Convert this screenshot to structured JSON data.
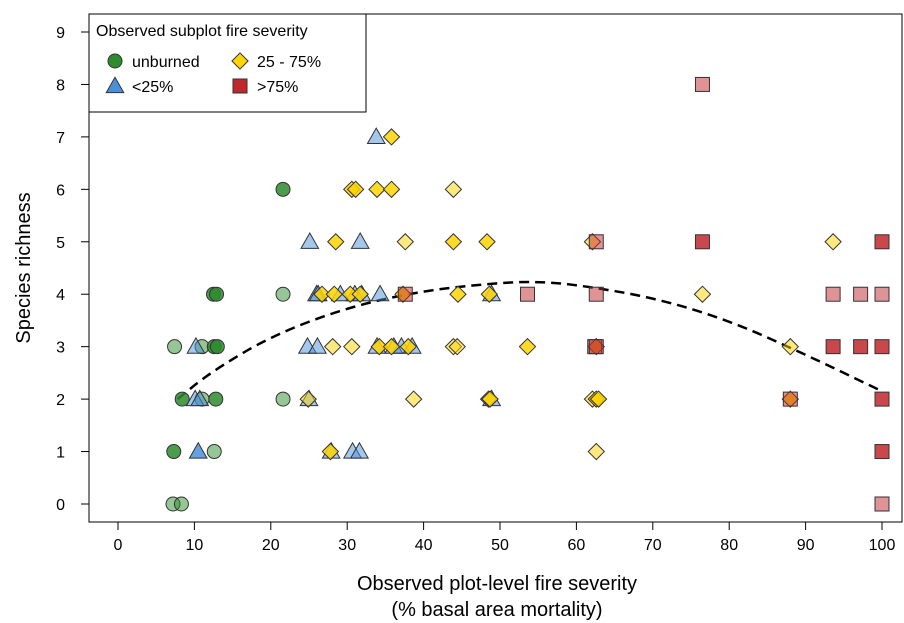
{
  "chart_data": {
    "type": "scatter",
    "title": "",
    "xlabel_line1": "Observed plot-level fire severity",
    "xlabel_line2": "(% basal area mortality)",
    "ylabel": "Species richness",
    "xlim": [
      -3,
      102
    ],
    "ylim": [
      -0.3,
      9.2
    ],
    "xticks": [
      0,
      10,
      20,
      30,
      40,
      50,
      60,
      70,
      80,
      90,
      100
    ],
    "yticks": [
      0,
      1,
      2,
      3,
      4,
      5,
      6,
      7,
      8,
      9
    ],
    "grid": false,
    "legend": {
      "title": "Observed subplot fire severity",
      "placement": "top-left",
      "entries": [
        {
          "key": "unburned",
          "label": "unburned",
          "marker": "circle",
          "color": "#2e8b2e"
        },
        {
          "key": "lt25",
          "label": "<25%",
          "marker": "triangle",
          "color": "#4a90d9"
        },
        {
          "key": "mid",
          "label": "25 - 75%",
          "marker": "diamond",
          "color": "#ffd400"
        },
        {
          "key": "gt75",
          "label": ">75%",
          "marker": "square",
          "color": "#c0282d"
        }
      ]
    },
    "series": [
      {
        "name": "unburned",
        "marker": "circle",
        "color": "#2e8b2e",
        "points": [
          [
            7.2,
            0
          ],
          [
            8.3,
            0
          ],
          [
            7.3,
            1
          ],
          [
            12.6,
            1
          ],
          [
            8.4,
            2
          ],
          [
            11.0,
            2
          ],
          [
            12.8,
            2
          ],
          [
            21.6,
            2
          ],
          [
            7.4,
            3
          ],
          [
            11.0,
            3
          ],
          [
            12.6,
            3
          ],
          [
            13.0,
            3
          ],
          [
            12.5,
            4
          ],
          [
            12.9,
            4
          ],
          [
            21.6,
            4
          ],
          [
            21.6,
            6
          ]
        ],
        "alphas": [
          0.5,
          0.5,
          0.85,
          0.5,
          0.85,
          0.5,
          0.85,
          0.5,
          0.5,
          0.5,
          0.85,
          0.85,
          0.85,
          0.85,
          0.5,
          0.85
        ]
      },
      {
        "name": "<25%",
        "marker": "triangle",
        "color": "#4a90d9",
        "points": [
          [
            10.5,
            1
          ],
          [
            27.9,
            1
          ],
          [
            30.7,
            1
          ],
          [
            31.6,
            1
          ],
          [
            10.1,
            2
          ],
          [
            10.7,
            2
          ],
          [
            25.0,
            2
          ],
          [
            48.9,
            2
          ],
          [
            10.2,
            3
          ],
          [
            24.8,
            3
          ],
          [
            26.1,
            3
          ],
          [
            33.9,
            3
          ],
          [
            36.1,
            3
          ],
          [
            37.1,
            3
          ],
          [
            38.5,
            3
          ],
          [
            26.0,
            4
          ],
          [
            26.2,
            4
          ],
          [
            29.1,
            4
          ],
          [
            31.0,
            4
          ],
          [
            31.9,
            4
          ],
          [
            34.3,
            4
          ],
          [
            48.9,
            4
          ],
          [
            25.1,
            5
          ],
          [
            31.7,
            5
          ],
          [
            33.8,
            7
          ]
        ],
        "alphas": [
          0.85,
          0.5,
          0.5,
          0.5,
          0.5,
          0.5,
          0.5,
          0.5,
          0.5,
          0.5,
          0.5,
          0.5,
          0.5,
          0.5,
          0.5,
          0.5,
          0.5,
          0.5,
          0.5,
          0.5,
          0.5,
          0.5,
          0.5,
          0.5,
          0.5
        ]
      },
      {
        "name": "25 - 75%",
        "marker": "diamond",
        "color": "#ffd400",
        "points": [
          [
            27.8,
            1
          ],
          [
            62.6,
            1
          ],
          [
            24.9,
            2
          ],
          [
            38.7,
            2
          ],
          [
            48.5,
            2
          ],
          [
            48.7,
            2
          ],
          [
            62.1,
            2
          ],
          [
            62.6,
            2
          ],
          [
            62.9,
            2
          ],
          [
            88.0,
            2
          ],
          [
            28.1,
            3
          ],
          [
            30.6,
            3
          ],
          [
            34.2,
            3
          ],
          [
            35.8,
            3
          ],
          [
            38.0,
            3
          ],
          [
            43.9,
            3
          ],
          [
            44.4,
            3
          ],
          [
            53.6,
            3
          ],
          [
            62.6,
            3
          ],
          [
            88.0,
            3
          ],
          [
            26.7,
            4
          ],
          [
            28.3,
            4
          ],
          [
            30.4,
            4
          ],
          [
            31.7,
            4
          ],
          [
            37.3,
            4
          ],
          [
            44.5,
            4
          ],
          [
            48.6,
            4
          ],
          [
            76.5,
            4
          ],
          [
            28.5,
            5
          ],
          [
            37.6,
            5
          ],
          [
            43.9,
            5
          ],
          [
            48.3,
            5
          ],
          [
            62.1,
            5
          ],
          [
            93.6,
            5
          ],
          [
            30.6,
            6
          ],
          [
            31.1,
            6
          ],
          [
            33.9,
            6
          ],
          [
            35.8,
            6
          ],
          [
            43.9,
            6
          ],
          [
            35.8,
            7
          ]
        ],
        "alphas": [
          0.85,
          0.5,
          0.5,
          0.5,
          0.5,
          0.85,
          0.5,
          0.85,
          0.85,
          0.85,
          0.5,
          0.5,
          0.85,
          0.85,
          0.85,
          0.5,
          0.5,
          0.85,
          0.85,
          0.5,
          0.85,
          0.85,
          0.85,
          0.85,
          0.85,
          0.85,
          0.85,
          0.5,
          0.85,
          0.5,
          0.85,
          0.85,
          0.5,
          0.5,
          0.85,
          0.85,
          0.85,
          0.85,
          0.5,
          0.85
        ]
      },
      {
        "name": ">75%",
        "marker": "square",
        "color": "#c0282d",
        "points": [
          [
            100,
            0
          ],
          [
            100,
            1
          ],
          [
            88.0,
            2
          ],
          [
            100,
            2
          ],
          [
            62.4,
            3
          ],
          [
            62.6,
            3
          ],
          [
            93.6,
            3
          ],
          [
            97.2,
            3
          ],
          [
            100,
            3
          ],
          [
            37.6,
            4
          ],
          [
            53.6,
            4
          ],
          [
            62.6,
            4
          ],
          [
            93.6,
            4
          ],
          [
            97.2,
            4
          ],
          [
            100,
            4
          ],
          [
            62.6,
            5
          ],
          [
            76.5,
            5
          ],
          [
            100,
            5
          ],
          [
            76.5,
            8
          ]
        ],
        "alphas": [
          0.5,
          0.85,
          0.5,
          0.85,
          0.5,
          0.5,
          0.85,
          0.85,
          0.85,
          0.5,
          0.5,
          0.5,
          0.5,
          0.5,
          0.5,
          0.5,
          0.85,
          0.85,
          0.5
        ]
      }
    ],
    "fit_curve": {
      "style": "dashed",
      "color": "#000000",
      "points": [
        [
          7.8,
          2.0
        ],
        [
          12,
          2.5
        ],
        [
          20,
          3.2
        ],
        [
          30,
          3.75
        ],
        [
          40,
          4.07
        ],
        [
          50,
          4.22
        ],
        [
          55,
          4.24
        ],
        [
          60,
          4.18
        ],
        [
          70,
          3.94
        ],
        [
          80,
          3.5
        ],
        [
          90,
          2.85
        ],
        [
          100,
          2.15
        ]
      ]
    }
  }
}
